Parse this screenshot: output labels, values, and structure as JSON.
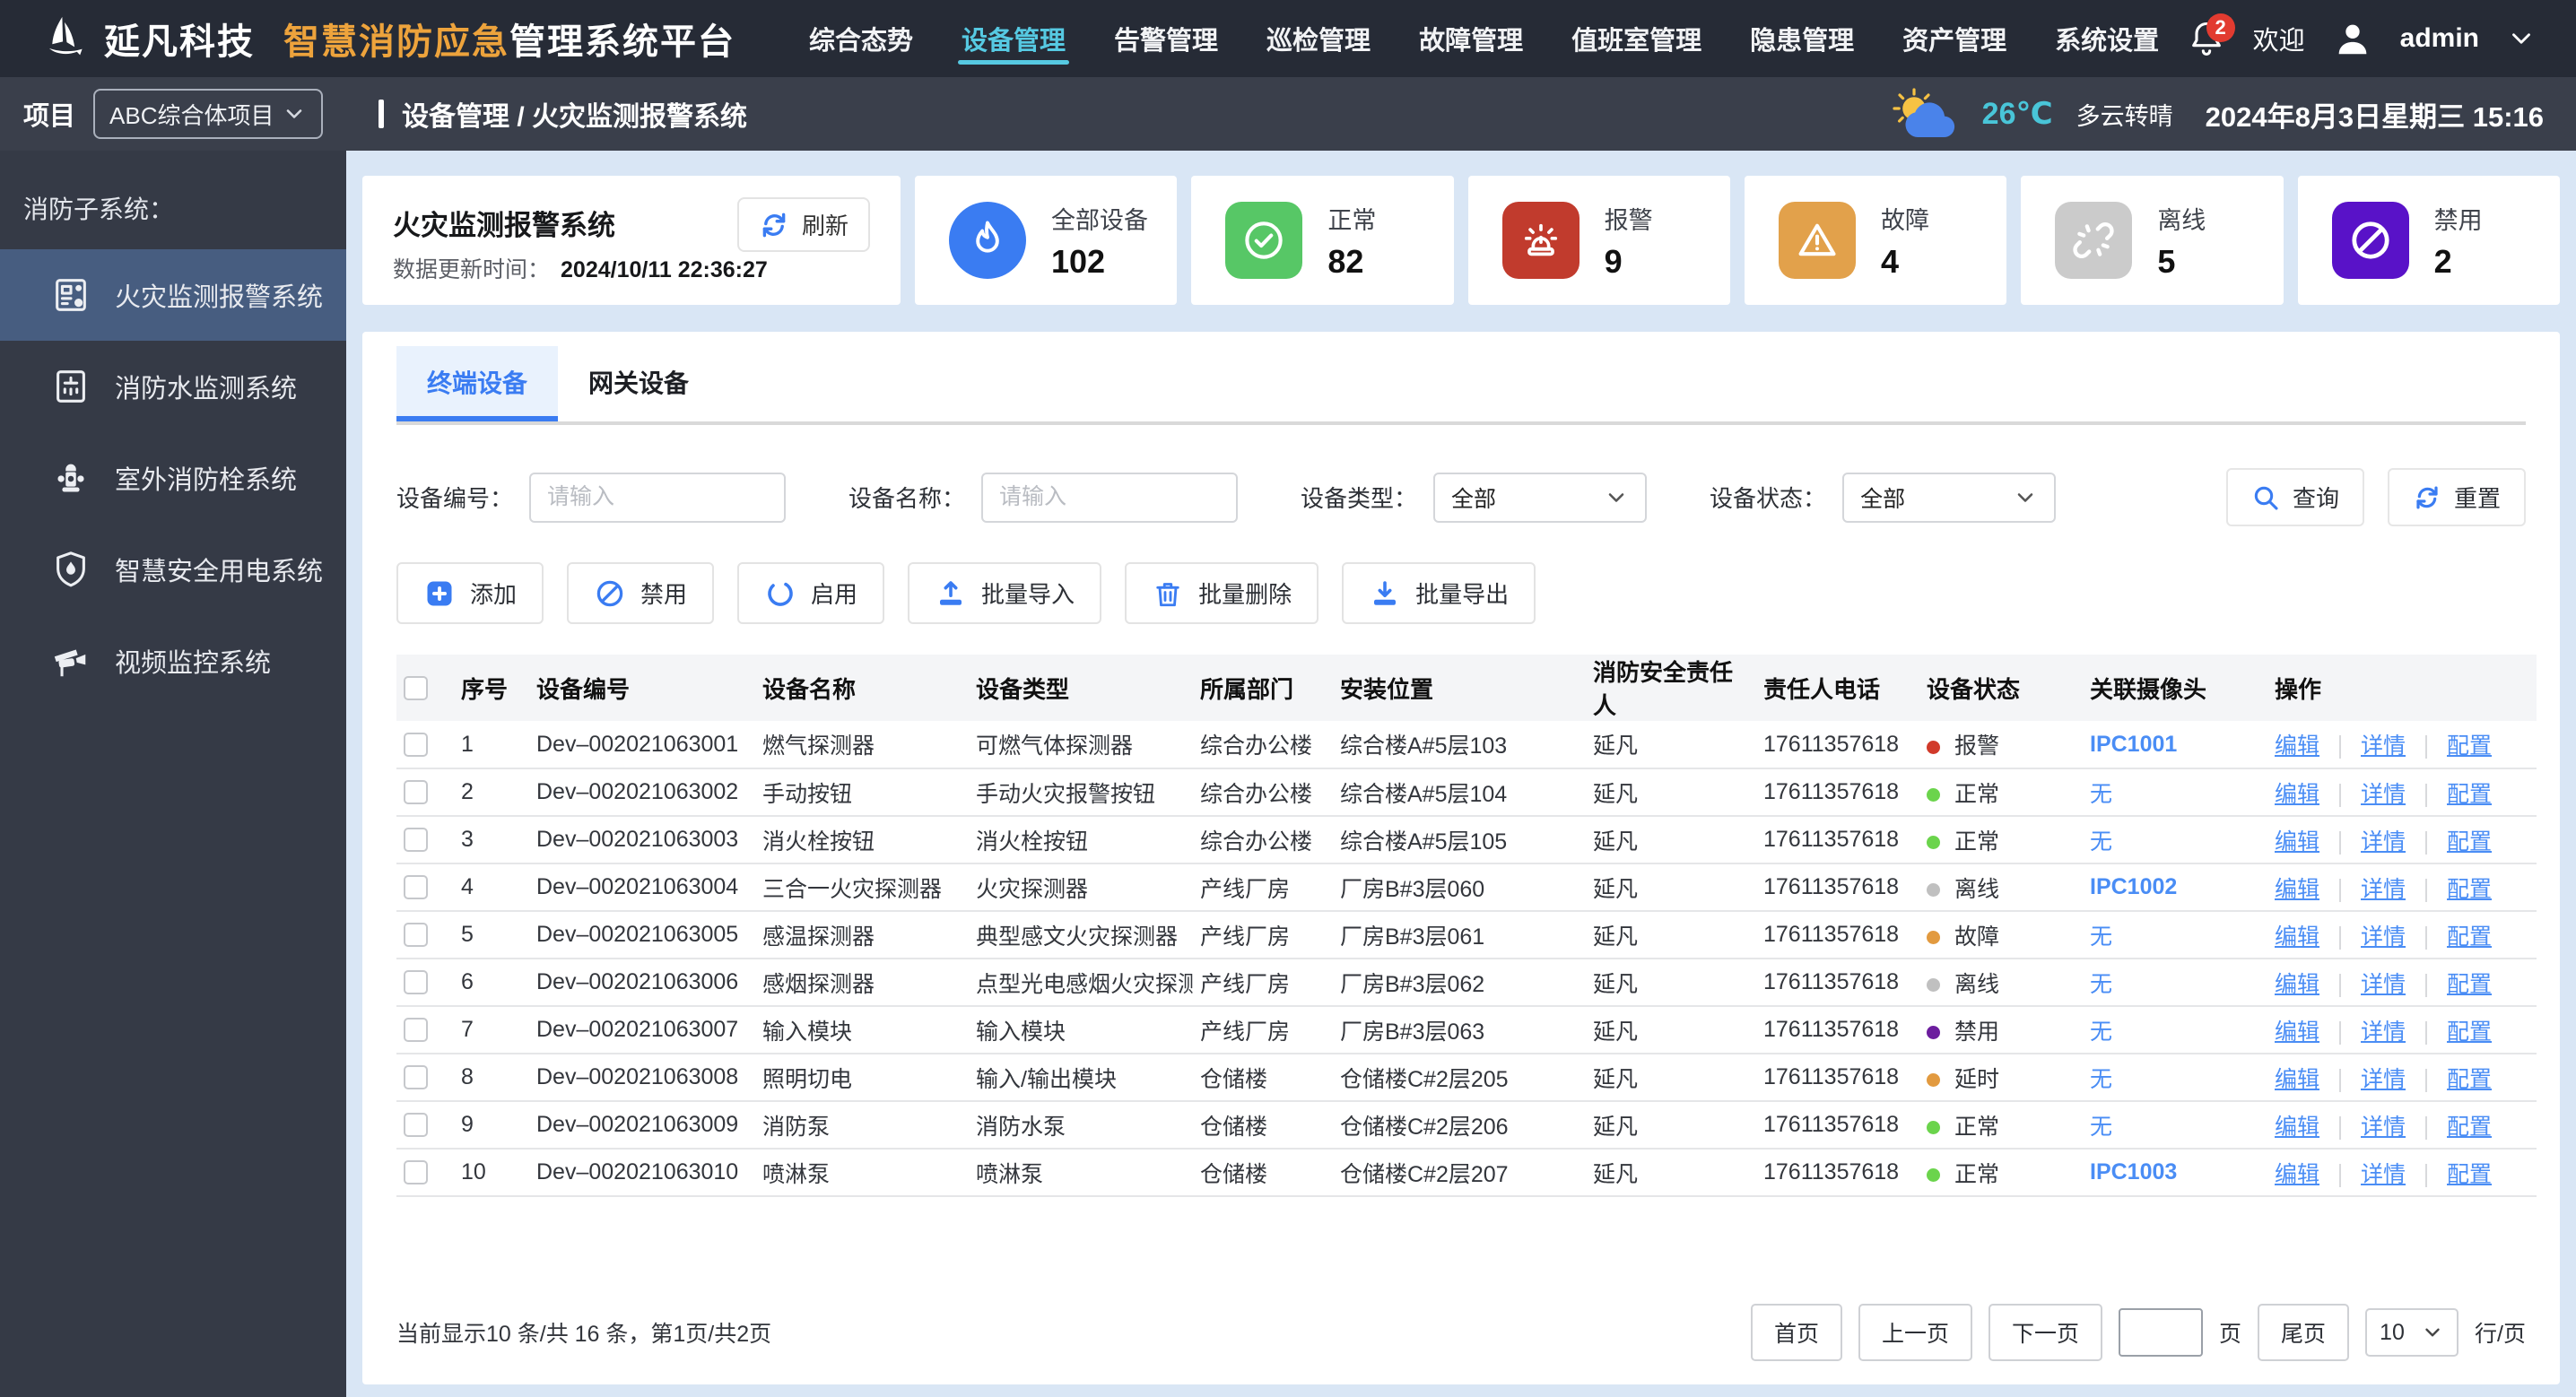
{
  "header": {
    "company": "延凡科技",
    "product_highlight": "智慧消防应急",
    "product_rest": "管理系统平台",
    "nav": [
      {
        "label": "综合态势",
        "active": false
      },
      {
        "label": "设备管理",
        "active": true
      },
      {
        "label": "告警管理",
        "active": false
      },
      {
        "label": "巡检管理",
        "active": false
      },
      {
        "label": "故障管理",
        "active": false
      },
      {
        "label": "值班室管理",
        "active": false
      },
      {
        "label": "隐患管理",
        "active": false
      },
      {
        "label": "资产管理",
        "active": false
      },
      {
        "label": "系统设置",
        "active": false
      }
    ],
    "notification_count": "2",
    "welcome": "欢迎",
    "username": "admin"
  },
  "sidebar": {
    "project_label": "项目",
    "project_value": "ABC综合体项目",
    "section_label": "消防子系统：",
    "items": [
      {
        "label": "火灾监测报警系统",
        "icon": "alarm-panel-icon",
        "active": true
      },
      {
        "label": "消防水监测系统",
        "icon": "water-monitor-icon",
        "active": false
      },
      {
        "label": "室外消防栓系统",
        "icon": "hydrant-icon",
        "active": false
      },
      {
        "label": "智慧安全用电系统",
        "icon": "shield-flame-icon",
        "active": false
      },
      {
        "label": "视频监控系统",
        "icon": "camera-icon",
        "active": false
      }
    ]
  },
  "breadcrumb": "设备管理 / 火灾监测报警系统",
  "weather": {
    "temp": "26℃",
    "desc": "多云转晴",
    "datetime": "2024年8月3日星期三 15:16",
    "temp_color": "#49c5d8"
  },
  "overview": {
    "title": "火灾监测报警系统",
    "refresh_label": "刷新",
    "update_label": "数据更新时间：",
    "update_time": "2024/10/11 22:36:27",
    "stats": [
      {
        "label": "全部设备",
        "value": "102",
        "icon": "flame-icon",
        "color": "#3a7cf2",
        "shape": "round"
      },
      {
        "label": "正常",
        "value": "82",
        "icon": "check-circle-icon",
        "color": "#57c766",
        "shape": "square"
      },
      {
        "label": "报警",
        "value": "9",
        "icon": "siren-icon",
        "color": "#c13b2d",
        "shape": "square"
      },
      {
        "label": "故障",
        "value": "4",
        "icon": "warning-icon",
        "color": "#e2a14b",
        "shape": "square"
      },
      {
        "label": "离线",
        "value": "5",
        "icon": "broken-link-icon",
        "color": "#cbcbcb",
        "shape": "square"
      },
      {
        "label": "禁用",
        "value": "2",
        "icon": "ban-icon",
        "color": "#5912c8",
        "shape": "square"
      }
    ]
  },
  "panel": {
    "tabs": [
      {
        "label": "终端设备",
        "active": true
      },
      {
        "label": "网关设备",
        "active": false
      }
    ],
    "filters": {
      "code_label": "设备编号：",
      "code_placeholder": "请输入",
      "name_label": "设备名称：",
      "name_placeholder": "请输入",
      "type_label": "设备类型：",
      "type_value": "全部",
      "status_label": "设备状态：",
      "status_value": "全部"
    },
    "search_label": "查询",
    "reset_label": "重置",
    "actions": [
      {
        "label": "添加",
        "icon": "plus-square-icon"
      },
      {
        "label": "禁用",
        "icon": "ban-outline-icon"
      },
      {
        "label": "启用",
        "icon": "circle-icon"
      },
      {
        "label": "批量导入",
        "icon": "upload-icon"
      },
      {
        "label": "批量删除",
        "icon": "trash-icon"
      },
      {
        "label": "批量导出",
        "icon": "download-icon"
      }
    ]
  },
  "table": {
    "headers": [
      "序号",
      "设备编号",
      "设备名称",
      "设备类型",
      "所属部门",
      "安装位置",
      "消防安全责任人",
      "责任人电话",
      "设备状态",
      "关联摄像头",
      "操作"
    ],
    "action_labels": [
      "编辑",
      "详情",
      "配置"
    ],
    "rows": [
      {
        "no": "1",
        "code": "Dev–002021063001",
        "name": "燃气探测器",
        "type": "可燃气体探测器",
        "dept": "综合办公楼",
        "location": "综合楼A#5层103",
        "person": "延凡",
        "phone": "17611357618",
        "status": "报警",
        "status_color": "#d13a2a",
        "camera": "IPC1001",
        "camera_link": true
      },
      {
        "no": "2",
        "code": "Dev–002021063002",
        "name": "手动按钮",
        "type": "手动火灾报警按钮",
        "dept": "综合办公楼",
        "location": "综合楼A#5层104",
        "person": "延凡",
        "phone": "17611357618",
        "status": "正常",
        "status_color": "#6bd44c",
        "camera": "无",
        "camera_link": false
      },
      {
        "no": "3",
        "code": "Dev–002021063003",
        "name": "消火栓按钮",
        "type": "消火栓按钮",
        "dept": "综合办公楼",
        "location": "综合楼A#5层105",
        "person": "延凡",
        "phone": "17611357618",
        "status": "正常",
        "status_color": "#6bd44c",
        "camera": "无",
        "camera_link": false
      },
      {
        "no": "4",
        "code": "Dev–002021063004",
        "name": "三合一火灾探测器",
        "type": "火灾探测器",
        "dept": "产线厂房",
        "location": "厂房B#3层060",
        "person": "延凡",
        "phone": "17611357618",
        "status": "离线",
        "status_color": "#c0c0c0",
        "camera": "IPC1002",
        "camera_link": true
      },
      {
        "no": "5",
        "code": "Dev–002021063005",
        "name": "感温探测器",
        "type": "典型感文火灾探测器",
        "dept": "产线厂房",
        "location": "厂房B#3层061",
        "person": "延凡",
        "phone": "17611357618",
        "status": "故障",
        "status_color": "#e29a3f",
        "camera": "无",
        "camera_link": false
      },
      {
        "no": "6",
        "code": "Dev–002021063006",
        "name": "感烟探测器",
        "type": "点型光电感烟火灾探测器",
        "dept": "产线厂房",
        "location": "厂房B#3层062",
        "person": "延凡",
        "phone": "17611357618",
        "status": "离线",
        "status_color": "#c0c0c0",
        "camera": "无",
        "camera_link": false
      },
      {
        "no": "7",
        "code": "Dev–002021063007",
        "name": "输入模块",
        "type": "输入模块",
        "dept": "产线厂房",
        "location": "厂房B#3层063",
        "person": "延凡",
        "phone": "17611357618",
        "status": "禁用",
        "status_color": "#6c1d9e",
        "camera": "无",
        "camera_link": false
      },
      {
        "no": "8",
        "code": "Dev–002021063008",
        "name": "照明切电",
        "type": "输入/输出模块",
        "dept": "仓储楼",
        "location": "仓储楼C#2层205",
        "person": "延凡",
        "phone": "17611357618",
        "status": "延时",
        "status_color": "#e29a3f",
        "camera": "无",
        "camera_link": false
      },
      {
        "no": "9",
        "code": "Dev–002021063009",
        "name": "消防泵",
        "type": "消防水泵",
        "dept": "仓储楼",
        "location": "仓储楼C#2层206",
        "person": "延凡",
        "phone": "17611357618",
        "status": "正常",
        "status_color": "#6bd44c",
        "camera": "无",
        "camera_link": false
      },
      {
        "no": "10",
        "code": "Dev–002021063010",
        "name": "喷淋泵",
        "type": "喷淋泵",
        "dept": "仓储楼",
        "location": "仓储楼C#2层207",
        "person": "延凡",
        "phone": "17611357618",
        "status": "正常",
        "status_color": "#6bd44c",
        "camera": "IPC1003",
        "camera_link": true
      }
    ]
  },
  "pagination": {
    "summary": "当前显示10 条/共 16 条，第1页/共2页",
    "first_label": "首页",
    "prev_label": "上一页",
    "next_label": "下一页",
    "page_unit": "页",
    "last_label": "尾页",
    "page_size": "10",
    "per_page_label": "行/页"
  }
}
